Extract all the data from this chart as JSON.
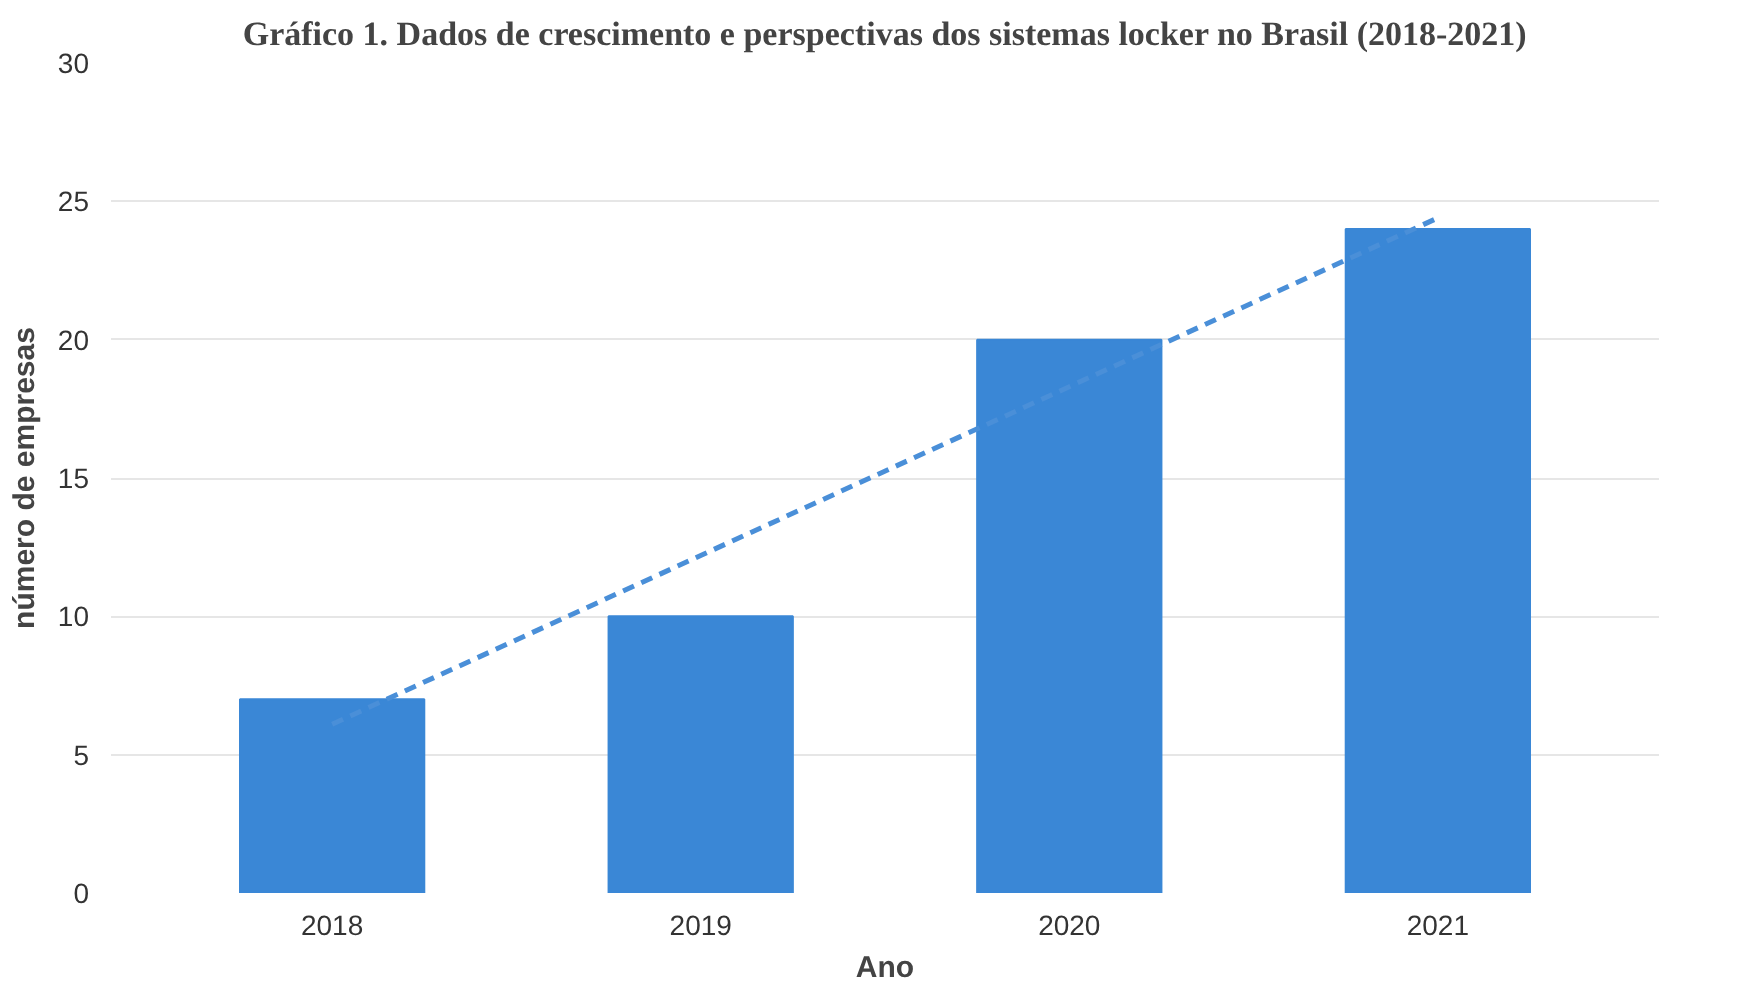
{
  "chart_data": {
    "type": "bar",
    "title": "Gráfico 1. Dados de crescimento e perspectivas dos sistemas locker no Brasil (2018-2021)",
    "xlabel": "Ano",
    "ylabel": "número de empresas",
    "categories": [
      "2018",
      "2019",
      "2020",
      "2021"
    ],
    "series": [
      {
        "color": "#3a87d6",
        "values": [
          7,
          10,
          20,
          24
        ]
      },
      {
        "type": "line",
        "color": "#4a8fd8",
        "line_style": "dashed",
        "values": [
          6.1,
          12.2,
          18.3,
          24.4
        ]
      }
    ],
    "ylim": [
      0,
      30
    ],
    "yticks": [
      0,
      5,
      10,
      15,
      20,
      25,
      30
    ],
    "grid": "y"
  }
}
